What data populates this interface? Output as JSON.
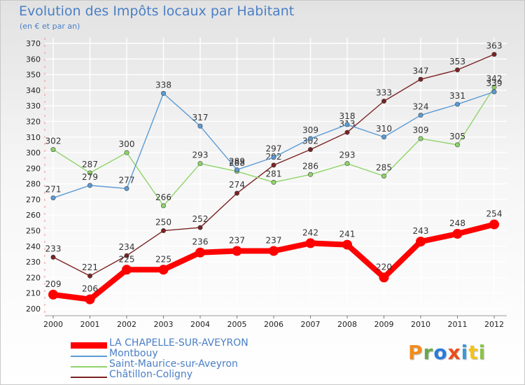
{
  "title": "Evolution des Impôts locaux par Habitant",
  "subtitle": "(en € et par an)",
  "brand": "Proxiti",
  "brand_colors": [
    "#f28c1e",
    "#6aa84f",
    "#2b7bd8",
    "#e94e1b",
    "#3a9ad9",
    "#f2c31e",
    "#8bc34a"
  ],
  "chart_data": {
    "type": "line",
    "title": "Evolution des Impôts locaux par Habitant",
    "subtitle": "(en € et par an)",
    "xlabel": "",
    "ylabel": "",
    "x": [
      "2000",
      "2001",
      "2002",
      "2003",
      "2004",
      "2005",
      "2006",
      "2007",
      "2008",
      "2009",
      "2010",
      "2011",
      "2012"
    ],
    "ylim": [
      200,
      370
    ],
    "yticks": [
      200,
      210,
      220,
      230,
      240,
      250,
      260,
      270,
      280,
      290,
      300,
      310,
      320,
      330,
      340,
      350,
      360,
      370
    ],
    "grid": true,
    "legend_position": "bottom-left",
    "series": [
      {
        "name": "Châtillon-Coligny",
        "color": "#7b2222",
        "values": [
          233,
          221,
          234,
          250,
          252,
          274,
          292,
          302,
          313,
          333,
          347,
          353,
          363
        ],
        "labels": [
          "233",
          "221",
          "234",
          "250",
          "252",
          "274",
          "292",
          "302",
          "313",
          "333",
          "347",
          "353",
          "363"
        ]
      },
      {
        "name": "Saint-Maurice-sur-Aveyron",
        "color": "#8fd46a",
        "values": [
          302,
          287,
          300,
          266,
          293,
          288,
          281,
          286,
          293,
          285,
          309,
          305,
          342
        ],
        "labels": [
          "302",
          "287",
          "300",
          "266",
          "293",
          "288",
          "281",
          "286",
          "293",
          "285",
          "309",
          "305",
          "342"
        ]
      },
      {
        "name": "Montbouy",
        "color": "#5b9bd5",
        "values": [
          271,
          279,
          277,
          338,
          317,
          289,
          297,
          309,
          318,
          310,
          324,
          331,
          339
        ],
        "labels": [
          "271",
          "279",
          "277",
          "338",
          "317",
          "289",
          "297",
          "309",
          "318",
          "310",
          "324",
          "331",
          "339"
        ]
      },
      {
        "name": "LA CHAPELLE-SUR-AVEYRON",
        "color": "#ff0000",
        "values": [
          209,
          206,
          225,
          225,
          236,
          237,
          237,
          242,
          241,
          220,
          243,
          248,
          254
        ],
        "labels": [
          "209",
          "206",
          "225",
          "225",
          "236",
          "237",
          "237",
          "242",
          "241",
          "220",
          "243",
          "248",
          "254"
        ]
      }
    ],
    "legend": [
      "LA CHAPELLE-SUR-AVEYRON",
      "Montbouy",
      "Saint-Maurice-sur-Aveyron",
      "Châtillon-Coligny"
    ]
  }
}
